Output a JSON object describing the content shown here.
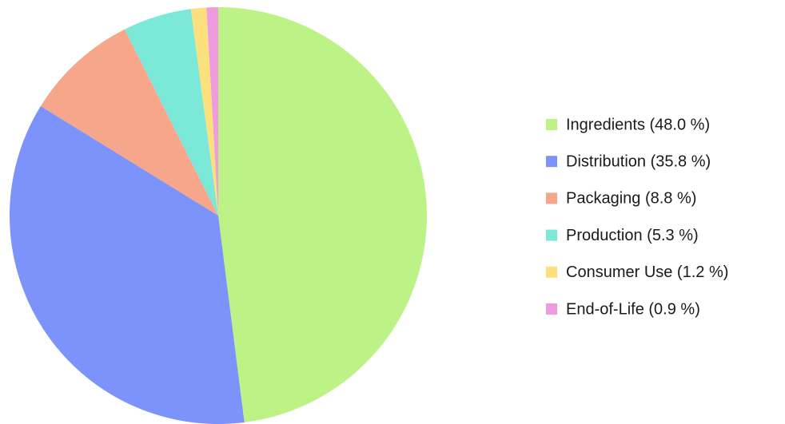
{
  "chart_data": {
    "type": "pie",
    "categories": [
      "Ingredients (48.0 %)",
      "Distribution (35.8 %)",
      "Packaging (8.8 %)",
      "Production (5.3 %)",
      "Consumer Use (1.2 %)",
      "End-of-Life (0.9 %)"
    ],
    "values": [
      48.0,
      35.8,
      8.8,
      5.3,
      1.2,
      0.9
    ],
    "colors": [
      "#bdf386",
      "#7b93fb",
      "#f5a68b",
      "#7ce8d8",
      "#fde07e",
      "#f09ae0"
    ],
    "legend": "right"
  }
}
